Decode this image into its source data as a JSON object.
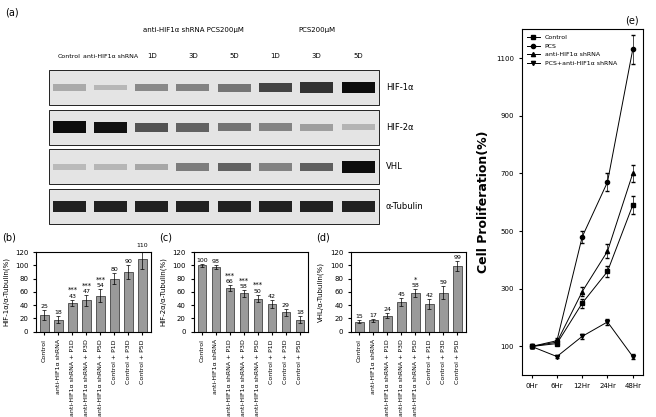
{
  "blot": {
    "panel_label": "(a)",
    "single_lanes": [
      "Control",
      "anti-HIF1α shRNA"
    ],
    "groups": [
      {
        "label": "anti-HIF1α shRNA PCS200μM",
        "lanes": [
          "1D",
          "3D",
          "5D"
        ]
      },
      {
        "label": "PCS200μM",
        "lanes": [
          "1D",
          "3D",
          "5D"
        ]
      }
    ],
    "rows": [
      "HIF-1α",
      "HIF-2α",
      "VHL",
      "α-Tubulin"
    ]
  },
  "chart_data": [
    {
      "type": "bar",
      "panel_label": "(b)",
      "y_label": "HIF-1α/α-Tubulin(%)",
      "categories": [
        "Control",
        "anti-HIF1α shRNA",
        "anti-HIF1α shRNA + P1D",
        "anti-HIF1α shRNA + P3D",
        "anti-HIF1α shRNA + P5D",
        "Control + P1D",
        "Control + P3D",
        "Control + P5D"
      ],
      "values": [
        25,
        18,
        43,
        47,
        54,
        80,
        90,
        110
      ],
      "errors": [
        8,
        5,
        5,
        8,
        10,
        8,
        10,
        15
      ],
      "significance": [
        null,
        null,
        "***",
        "***",
        "***",
        null,
        null,
        null
      ],
      "color": "#9a9a9a",
      "data_labels": true,
      "ylim": [
        0,
        120
      ],
      "yticks": [
        0,
        20,
        40,
        60,
        80,
        100,
        120
      ]
    },
    {
      "type": "bar",
      "panel_label": "(c)",
      "y_label": "HIF-2α/α-Tubulin(%)",
      "categories": [
        "Control",
        "anti-HIF1α shRNA",
        "anti-HIF1α shRNA + P1D",
        "anti-HIF1α shRNA + P3D",
        "anti-HIF1α shRNA + P5D",
        "Control + P1D",
        "Control + P3D",
        "Control + P5D"
      ],
      "values": [
        100,
        98,
        66,
        58,
        50,
        42,
        29,
        18
      ],
      "errors": [
        3,
        3,
        4,
        5,
        6,
        6,
        5,
        5
      ],
      "significance": [
        null,
        null,
        "***",
        "***",
        "***",
        null,
        null,
        null
      ],
      "color": "#9a9a9a",
      "data_labels": true,
      "ylim": [
        0,
        120
      ],
      "yticks": [
        0,
        20,
        40,
        60,
        80,
        100,
        120
      ]
    },
    {
      "type": "bar",
      "panel_label": "(d)",
      "y_label": "VHL/α-Tubulin(%)",
      "categories": [
        "Control",
        "anti-HIF1α shRNA",
        "anti-HIF1α shRNA + P1D",
        "anti-HIF1α shRNA + P3D",
        "anti-HIF1α shRNA + P5D",
        "Control + P1D",
        "Control + P3D",
        "Control + P5D"
      ],
      "values": [
        15,
        17,
        24,
        45,
        58,
        42,
        59,
        99
      ],
      "errors": [
        2,
        2,
        4,
        6,
        6,
        8,
        10,
        8
      ],
      "significance": [
        null,
        null,
        null,
        null,
        "*",
        null,
        null,
        null
      ],
      "color": "#9a9a9a",
      "data_labels": true,
      "ylim": [
        0,
        120
      ],
      "yticks": [
        0,
        20,
        40,
        60,
        80,
        100,
        120
      ]
    },
    {
      "type": "line",
      "panel_label": "(e)",
      "y_label": "Cell Proliferation(%)",
      "categories": [
        "0Hr",
        "6Hr",
        "12Hr",
        "24Hr",
        "48Hr"
      ],
      "series": [
        {
          "name": "Control",
          "color": "#000000",
          "marker": "square",
          "values": [
            100,
            110,
            250,
            360,
            590
          ],
          "errors": [
            5,
            5,
            15,
            20,
            30
          ]
        },
        {
          "name": "PCS",
          "color": "#000000",
          "marker": "circle",
          "values": [
            100,
            120,
            480,
            670,
            1130
          ],
          "errors": [
            5,
            8,
            20,
            30,
            50
          ]
        },
        {
          "name": "anti-HIF1α shRNA",
          "color": "#000000",
          "marker": "triangle_up",
          "values": [
            100,
            115,
            290,
            430,
            700
          ],
          "errors": [
            5,
            6,
            15,
            25,
            30
          ]
        },
        {
          "name": "PCS+anti-HIF1α shRNA",
          "color": "#000000",
          "marker": "triangle_down",
          "values": [
            100,
            65,
            135,
            185,
            65
          ],
          "errors": [
            5,
            5,
            8,
            10,
            8
          ]
        }
      ],
      "legend": "upper left",
      "ylim": [
        0,
        1200
      ],
      "yticks": [
        100,
        300,
        500,
        700,
        900,
        1100
      ]
    }
  ]
}
